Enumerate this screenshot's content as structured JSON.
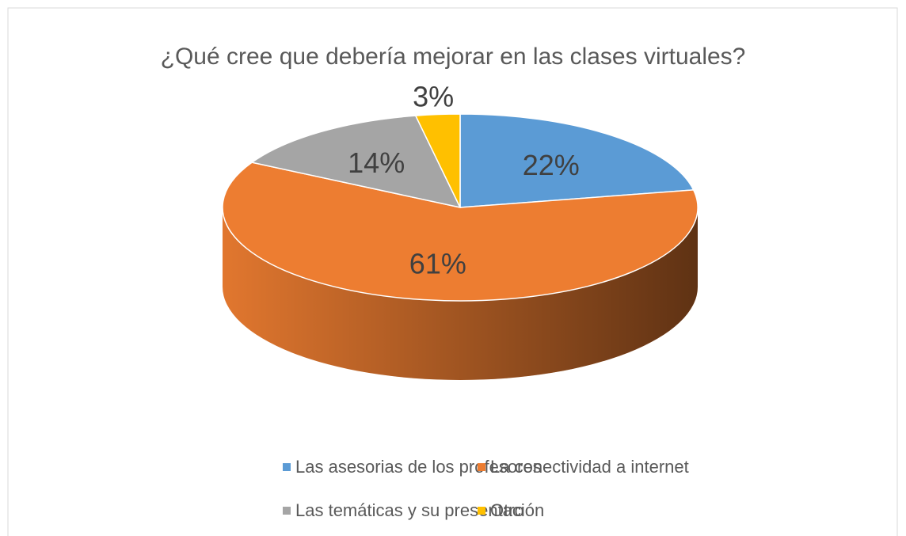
{
  "chart_data": {
    "type": "pie",
    "title": "¿Qué cree que debería mejorar en las clases virtuales?",
    "categories": [
      "Las asesorias de los profesores",
      "La conectividad a internet",
      "Las temáticas y su presentación",
      "Otro"
    ],
    "values": [
      22,
      61,
      14,
      3
    ],
    "value_labels": [
      "22%",
      "61%",
      "14%",
      "3%"
    ],
    "colors": [
      "#5b9bd5",
      "#ed7d31",
      "#a5a5a5",
      "#ffc000"
    ],
    "legend": "bottom"
  }
}
